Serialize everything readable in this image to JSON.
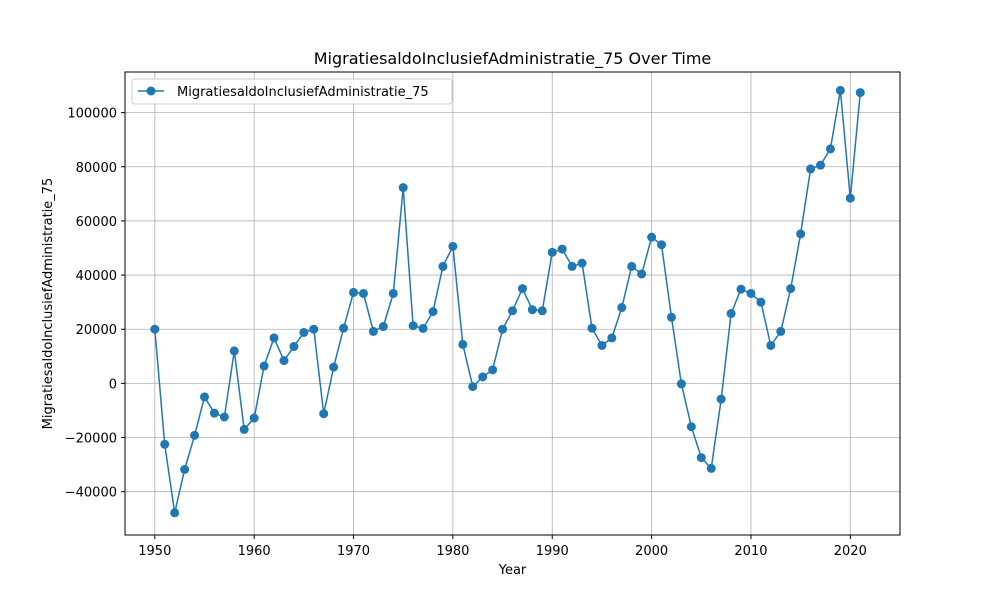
{
  "chart_data": {
    "type": "line",
    "title": "MigratiesaldoInclusiefAdministratie_75 Over Time",
    "xlabel": "Year",
    "ylabel": "MigratiesaldoInclusiefAdministratie_75",
    "xlim": [
      1947,
      2025
    ],
    "ylim": [
      -56000,
      115000
    ],
    "x_ticks": [
      1950,
      1960,
      1970,
      1980,
      1990,
      2000,
      2010,
      2020
    ],
    "y_ticks": [
      -40000,
      -20000,
      0,
      20000,
      40000,
      60000,
      80000,
      100000
    ],
    "grid": true,
    "legend_position": "top-left",
    "color": "#1f77b4",
    "series": [
      {
        "name": "MigratiesaldoInclusiefAdministratie_75",
        "x": [
          1950,
          1951,
          1952,
          1953,
          1954,
          1955,
          1956,
          1957,
          1958,
          1959,
          1960,
          1961,
          1962,
          1963,
          1964,
          1965,
          1966,
          1967,
          1968,
          1969,
          1970,
          1971,
          1972,
          1973,
          1974,
          1975,
          1976,
          1977,
          1978,
          1979,
          1980,
          1981,
          1982,
          1983,
          1984,
          1985,
          1986,
          1987,
          1988,
          1989,
          1990,
          1991,
          1992,
          1993,
          1994,
          1995,
          1996,
          1997,
          1998,
          1999,
          2000,
          2001,
          2002,
          2003,
          2004,
          2005,
          2006,
          2007,
          2008,
          2009,
          2010,
          2011,
          2012,
          2013,
          2014,
          2015,
          2016,
          2017,
          2018,
          2019,
          2020,
          2021
        ],
        "values": [
          20000,
          -22500,
          -47800,
          -31800,
          -19200,
          -5000,
          -11000,
          -12400,
          12000,
          -17000,
          -12800,
          6400,
          16800,
          8400,
          13600,
          18800,
          20000,
          -11200,
          6000,
          20400,
          33600,
          33200,
          19200,
          21000,
          33200,
          72300,
          21300,
          20300,
          26500,
          43200,
          50600,
          14400,
          -1200,
          2400,
          5000,
          20000,
          26800,
          35000,
          27200,
          26800,
          48400,
          49600,
          43200,
          44400,
          20400,
          14000,
          16800,
          28000,
          43200,
          40400,
          54000,
          51200,
          24400,
          -200,
          -16000,
          -27400,
          -31400,
          -5800,
          25800,
          34800,
          33200,
          30000,
          14000,
          19200,
          35000,
          55200,
          79200,
          80600,
          86600,
          108200,
          68400,
          107400
        ]
      }
    ]
  }
}
